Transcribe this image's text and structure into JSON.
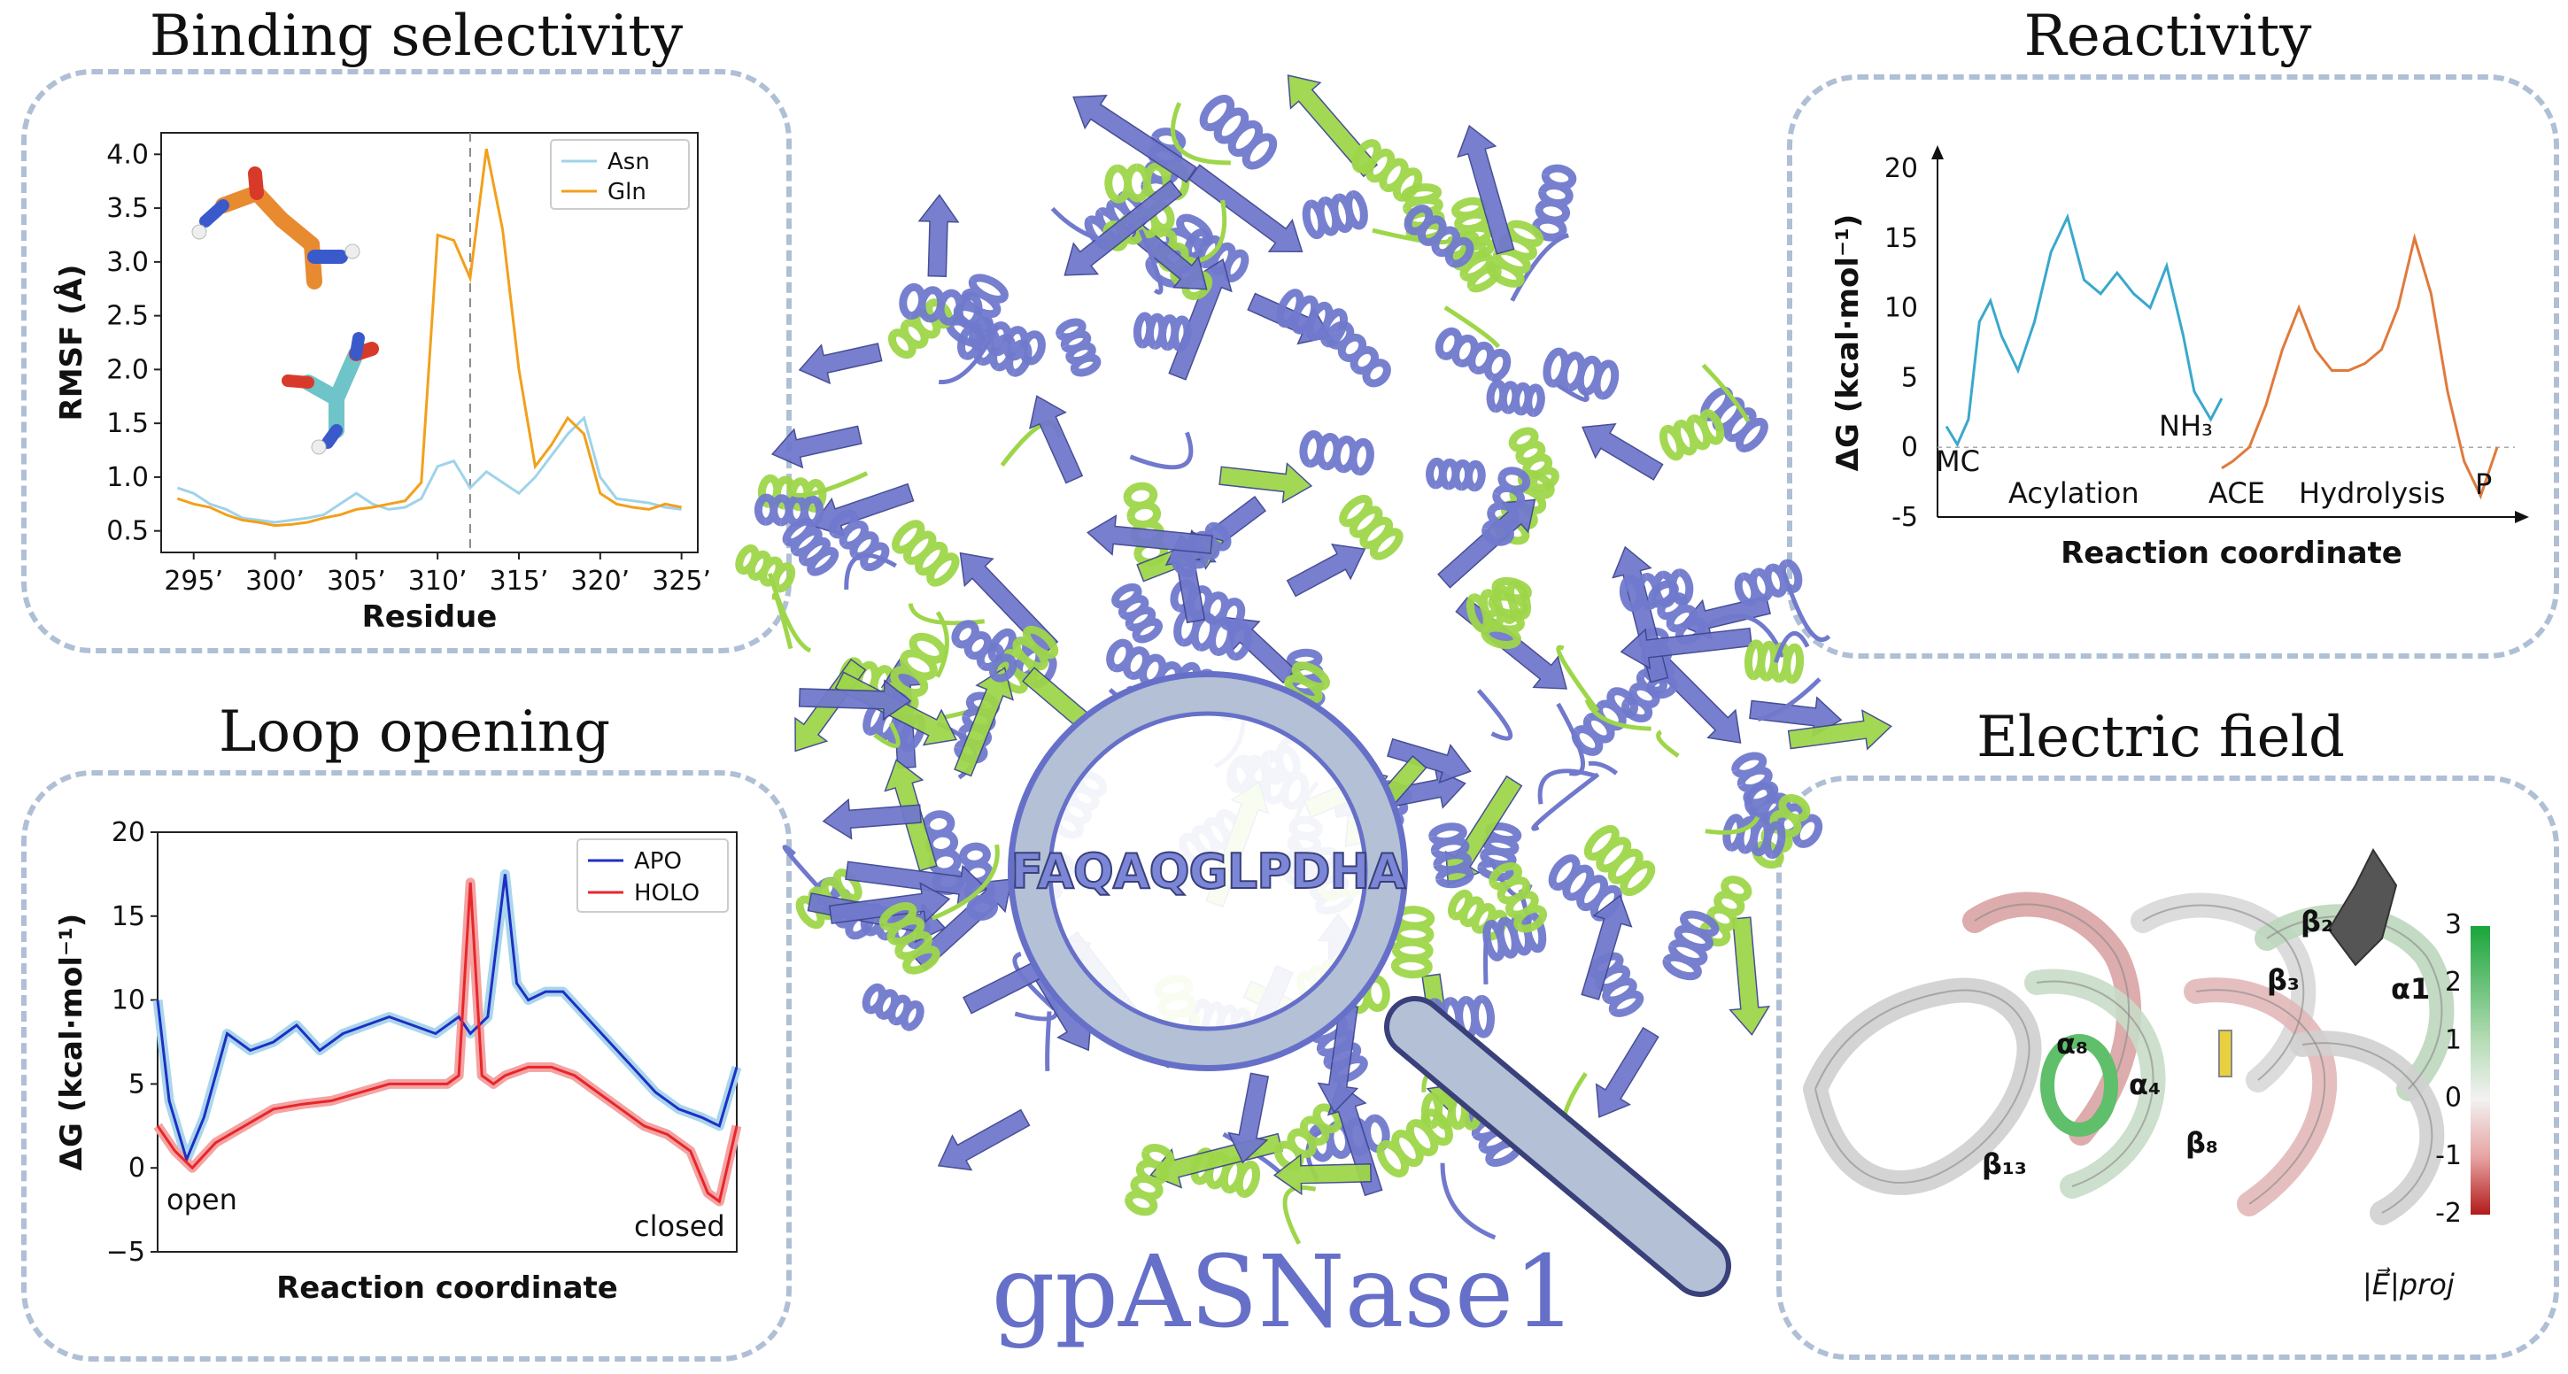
{
  "panels": {
    "binding": {
      "title": "Binding selectivity",
      "ylabel": "RMSF (Å)",
      "xlabel": "Residue",
      "yticks": [
        "4.0",
        "3.5",
        "3.0",
        "2.5",
        "2.0",
        "1.5",
        "1.0",
        "0.5"
      ],
      "xticks": [
        "295’",
        "300’",
        "305’",
        "310’",
        "315’",
        "320’",
        "325’"
      ]
    },
    "reactivity": {
      "title": "Reactivity",
      "ylabel": "ΔG (kcal·mol⁻¹)",
      "xlabel": "Reaction coordinate",
      "yticks": [
        "20",
        "15",
        "10",
        "5",
        "0",
        "-5"
      ],
      "labels": {
        "mc": "MC",
        "nh3": "NH₃",
        "ace": "ACE",
        "p": "P",
        "acylation": "Acylation",
        "hydrolysis": "Hydrolysis"
      }
    },
    "loop": {
      "title": "Loop opening",
      "ylabel": "ΔG (kcal·mol⁻¹)",
      "xlabel": "Reaction coordinate",
      "yticks": [
        "20",
        "15",
        "10",
        "5",
        "0",
        "−5"
      ],
      "labels": {
        "open": "open",
        "closed": "closed"
      }
    },
    "field": {
      "title": "Electric field",
      "colorbar_ticks": [
        "3",
        "2",
        "1",
        "0",
        "-1",
        "-2"
      ],
      "colorbar_label": "|E⃗|proj",
      "labels": [
        "β₂",
        "β₃",
        "α1",
        "α₈",
        "α₄",
        "β₈",
        "β₁₃"
      ]
    }
  },
  "center": {
    "molecule_name": "gpASNase1",
    "sequence": "FAQAQGLPDHA"
  },
  "colors": {
    "asn": "#9fd3ea",
    "gln": "#f2a01c",
    "apo": "#1f2fc4",
    "holo": "#e8262a",
    "acylation": "#3aa8cc",
    "hydrolysis": "#e07a3c",
    "protein_blue": "#7079cc",
    "protein_green": "#9ed64a",
    "panel_border": "#aebfd6"
  },
  "chart_data": [
    {
      "type": "line",
      "title": "Binding selectivity",
      "xlabel": "Residue",
      "ylabel": "RMSF (Å)",
      "xlim": [
        293,
        326
      ],
      "ylim": [
        0.3,
        4.2
      ],
      "reference_line_x": 312,
      "series": [
        {
          "name": "Asn",
          "x": [
            294,
            295,
            296,
            297,
            298,
            299,
            300,
            301,
            302,
            303,
            304,
            305,
            306,
            307,
            308,
            309,
            310,
            311,
            312,
            313,
            314,
            315,
            316,
            317,
            318,
            319,
            320,
            321,
            322,
            323,
            324,
            325
          ],
          "values": [
            0.9,
            0.85,
            0.75,
            0.7,
            0.62,
            0.6,
            0.58,
            0.6,
            0.62,
            0.65,
            0.75,
            0.85,
            0.75,
            0.7,
            0.72,
            0.8,
            1.1,
            1.15,
            0.9,
            1.05,
            0.95,
            0.85,
            1.0,
            1.2,
            1.4,
            1.55,
            1.0,
            0.8,
            0.78,
            0.76,
            0.72,
            0.7
          ]
        },
        {
          "name": "Gln",
          "x": [
            294,
            295,
            296,
            297,
            298,
            299,
            300,
            301,
            302,
            303,
            304,
            305,
            306,
            307,
            308,
            309,
            310,
            311,
            312,
            313,
            314,
            315,
            316,
            317,
            318,
            319,
            320,
            321,
            322,
            323,
            324,
            325
          ],
          "values": [
            0.8,
            0.75,
            0.72,
            0.65,
            0.6,
            0.58,
            0.55,
            0.56,
            0.58,
            0.62,
            0.65,
            0.7,
            0.72,
            0.75,
            0.78,
            0.95,
            3.25,
            3.2,
            2.85,
            4.05,
            3.3,
            2.0,
            1.1,
            1.3,
            1.55,
            1.4,
            0.85,
            0.75,
            0.72,
            0.7,
            0.75,
            0.72
          ]
        }
      ],
      "legend": "top-right"
    },
    {
      "type": "line",
      "title": "Reactivity",
      "xlabel": "Reaction coordinate",
      "ylabel": "ΔG (kcal·mol⁻¹)",
      "ylim": [
        -5,
        20
      ],
      "xlim": [
        0,
        1
      ],
      "series": [
        {
          "name": "Acylation",
          "x": [
            0,
            0.02,
            0.04,
            0.06,
            0.08,
            0.1,
            0.13,
            0.16,
            0.19,
            0.22,
            0.25,
            0.28,
            0.31,
            0.34,
            0.37,
            0.4,
            0.43,
            0.45,
            0.48,
            0.5
          ],
          "values": [
            1.5,
            0.2,
            2,
            9,
            10.5,
            8,
            5.5,
            9,
            14,
            16.5,
            12,
            11,
            12.5,
            11,
            10,
            13,
            8,
            4,
            2,
            3.5
          ]
        },
        {
          "name": "Hydrolysis",
          "x": [
            0.5,
            0.52,
            0.55,
            0.58,
            0.61,
            0.64,
            0.67,
            0.7,
            0.73,
            0.76,
            0.79,
            0.82,
            0.85,
            0.88,
            0.91,
            0.94,
            0.97,
            1.0
          ],
          "values": [
            -1.5,
            -1,
            0,
            3,
            7,
            10,
            7,
            5.5,
            5.5,
            6,
            7,
            10,
            15,
            11,
            4,
            -1,
            -3.5,
            0
          ]
        }
      ]
    },
    {
      "type": "line",
      "title": "Loop opening",
      "xlabel": "Reaction coordinate",
      "ylabel": "ΔG (kcal·mol⁻¹)",
      "ylim": [
        -5,
        20
      ],
      "xlim": [
        0,
        1
      ],
      "series": [
        {
          "name": "APO",
          "x": [
            0,
            0.02,
            0.05,
            0.08,
            0.12,
            0.16,
            0.2,
            0.24,
            0.28,
            0.32,
            0.36,
            0.4,
            0.44,
            0.48,
            0.52,
            0.54,
            0.57,
            0.6,
            0.62,
            0.64,
            0.67,
            0.7,
            0.74,
            0.78,
            0.82,
            0.86,
            0.9,
            0.94,
            0.97,
            1.0
          ],
          "values": [
            10,
            4,
            0.5,
            3,
            8,
            7,
            7.5,
            8.5,
            7,
            8,
            8.5,
            9,
            8.5,
            8,
            9,
            8,
            9,
            17.5,
            11,
            10,
            10.5,
            10.5,
            9,
            7.5,
            6,
            4.5,
            3.5,
            3,
            2.5,
            6
          ]
        },
        {
          "name": "HOLO",
          "x": [
            0,
            0.03,
            0.06,
            0.1,
            0.15,
            0.2,
            0.25,
            0.3,
            0.35,
            0.4,
            0.45,
            0.5,
            0.52,
            0.54,
            0.56,
            0.58,
            0.6,
            0.64,
            0.68,
            0.72,
            0.76,
            0.8,
            0.84,
            0.88,
            0.92,
            0.95,
            0.97,
            1.0
          ],
          "values": [
            2.5,
            1,
            0,
            1.5,
            2.5,
            3.5,
            3.8,
            4,
            4.5,
            5,
            5,
            5,
            5.5,
            17,
            5.5,
            5,
            5.5,
            6,
            6,
            5.5,
            4.5,
            3.5,
            2.5,
            2,
            1,
            -1.5,
            -2,
            2.5
          ]
        }
      ],
      "legend": "top-right"
    }
  ]
}
